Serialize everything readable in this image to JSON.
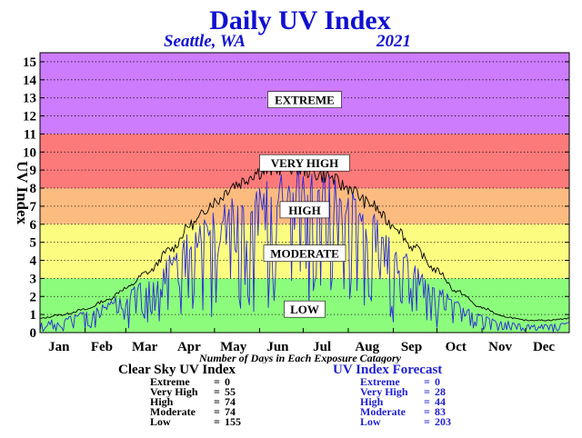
{
  "title": "Daily UV Index",
  "subtitle_left": "Seattle, WA",
  "subtitle_right": "2021",
  "colors": {
    "extreme": "#cc7cfc",
    "very_high": "#fc7a7a",
    "high": "#fcbc80",
    "moderate": "#fcfc80",
    "low": "#8cfc7c",
    "clear_sky_line": "#000000",
    "forecast_line": "#2a2ad8",
    "title": "#1010d0"
  },
  "chart_data": {
    "type": "line",
    "ylabel": "UV Index",
    "xlabel": "Number of Days in Each Exposure Catagory",
    "ylim": [
      0,
      15
    ],
    "xlim": [
      1,
      365
    ],
    "yticks": [
      0,
      1,
      2,
      3,
      4,
      5,
      6,
      7,
      8,
      9,
      10,
      11,
      12,
      13,
      14,
      15
    ],
    "months": [
      "Jan",
      "Feb",
      "Mar",
      "Apr",
      "May",
      "Jun",
      "Jul",
      "Aug",
      "Sep",
      "Oct",
      "Nov",
      "Dec"
    ],
    "month_start_days": [
      1,
      32,
      60,
      91,
      121,
      152,
      182,
      213,
      244,
      274,
      305,
      335
    ],
    "grid": true,
    "bands": [
      {
        "name": "LOW",
        "from": 0,
        "to": 3,
        "label_value": 1.3
      },
      {
        "name": "MODERATE",
        "from": 3,
        "to": 6,
        "label_value": 4.4
      },
      {
        "name": "HIGH",
        "from": 6,
        "to": 8,
        "label_value": 6.8
      },
      {
        "name": "VERY HIGH",
        "from": 8,
        "to": 11,
        "label_value": 9.4
      },
      {
        "name": "EXTREME",
        "from": 11,
        "to": 16,
        "label_value": 12.9
      }
    ],
    "series": [
      {
        "role": "clear_sky",
        "days": [
          1,
          15,
          32,
          46,
          60,
          75,
          91,
          105,
          121,
          135,
          152,
          172,
          182,
          196,
          213,
          227,
          244,
          258,
          274,
          288,
          305,
          320,
          335,
          350,
          365
        ],
        "values": [
          0.8,
          1.0,
          1.3,
          1.8,
          2.5,
          3.4,
          4.7,
          6.1,
          7.4,
          8.4,
          9.1,
          9.4,
          9.2,
          8.9,
          8.2,
          7.3,
          6.1,
          4.8,
          3.5,
          2.3,
          1.4,
          0.9,
          0.7,
          0.7,
          0.8
        ]
      },
      {
        "role": "forecast",
        "days": [
          1,
          15,
          32,
          46,
          60,
          75,
          91,
          105,
          121,
          135,
          152,
          172,
          182,
          196,
          213,
          227,
          244,
          258,
          274,
          288,
          305,
          320,
          335,
          350,
          365
        ],
        "values": [
          0.5,
          0.7,
          1.0,
          1.4,
          2.0,
          2.7,
          3.8,
          5.0,
          6.0,
          6.8,
          7.3,
          7.8,
          8.2,
          7.9,
          7.0,
          6.0,
          4.7,
          3.5,
          2.3,
          1.5,
          0.9,
          0.6,
          0.4,
          0.4,
          0.5
        ]
      }
    ]
  },
  "clear_sky_summary": {
    "title": "Clear Sky UV Index",
    "rows": [
      {
        "label": "Extreme",
        "eq": "=",
        "value": "0"
      },
      {
        "label": "Very High",
        "eq": "=",
        "value": "55"
      },
      {
        "label": "High",
        "eq": "=",
        "value": "74"
      },
      {
        "label": "Moderate",
        "eq": "=",
        "value": "74"
      },
      {
        "label": "Low",
        "eq": "=",
        "value": "155"
      }
    ]
  },
  "forecast_summary": {
    "title": "UV Index Forecast",
    "rows": [
      {
        "label": "Extreme",
        "eq": "=",
        "value": "0"
      },
      {
        "label": "Very High",
        "eq": "=",
        "value": "28"
      },
      {
        "label": "High",
        "eq": "=",
        "value": "44"
      },
      {
        "label": "Moderate",
        "eq": "=",
        "value": "83"
      },
      {
        "label": "Low",
        "eq": "=",
        "value": "203"
      }
    ]
  }
}
